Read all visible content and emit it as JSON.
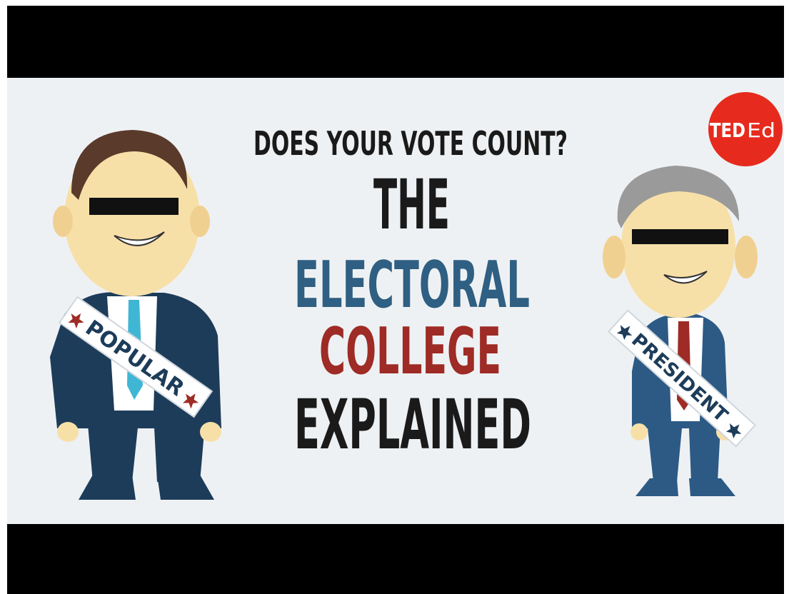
{
  "thumbnail": {
    "subtitle": "DOES YOUR VOTE COUNT?",
    "title_lines": [
      "THE",
      "ELECTORAL",
      "COLLEGE",
      "EXPLAINED"
    ],
    "logo": {
      "ted": "TED",
      "ed": "Ed"
    },
    "sashes": [
      "POPULAR",
      "PRESIDENT"
    ]
  }
}
